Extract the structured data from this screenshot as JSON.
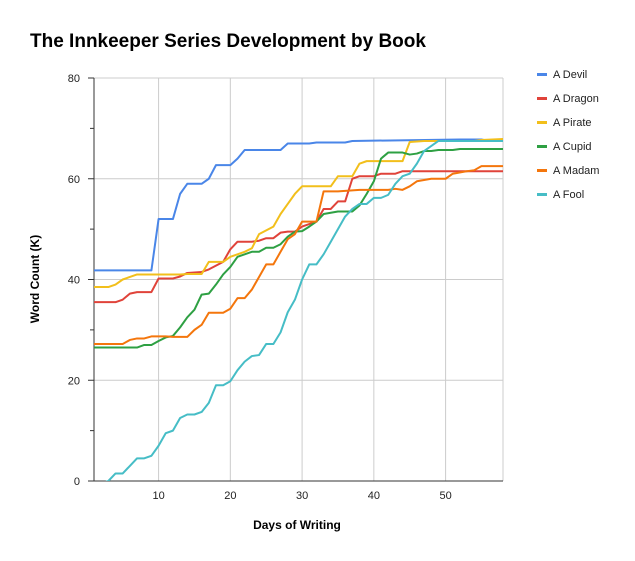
{
  "chart_data": {
    "type": "line",
    "title": "The Innkeeper Series Development by Book",
    "xlabel": "Days of Writing",
    "ylabel": "Word Count (K)",
    "xlim": [
      1,
      58
    ],
    "ylim": [
      0,
      80
    ],
    "x_ticks": [
      10,
      20,
      30,
      40,
      50
    ],
    "y_ticks": [
      0,
      20,
      40,
      60,
      80
    ],
    "legend_position": "right",
    "series": [
      {
        "name": "A Devil",
        "color": "#4a86e8",
        "points": [
          [
            1,
            41.8
          ],
          [
            9,
            41.8
          ],
          [
            10,
            52
          ],
          [
            12,
            52
          ],
          [
            13,
            57
          ],
          [
            14,
            59
          ],
          [
            16,
            59
          ],
          [
            17,
            60
          ],
          [
            18,
            62.7
          ],
          [
            20,
            62.7
          ],
          [
            21,
            64
          ],
          [
            22,
            65.7
          ],
          [
            27,
            65.7
          ],
          [
            28,
            67
          ],
          [
            31,
            67
          ],
          [
            32,
            67.2
          ],
          [
            36,
            67.2
          ],
          [
            37,
            67.5
          ],
          [
            52,
            67.8
          ],
          [
            55,
            67.8
          ],
          [
            56,
            67.5
          ]
        ]
      },
      {
        "name": "A Dragon",
        "color": "#e0433a",
        "points": [
          [
            1,
            35.5
          ],
          [
            4,
            35.5
          ],
          [
            5,
            36
          ],
          [
            6,
            37.2
          ],
          [
            7,
            37.5
          ],
          [
            9,
            37.5
          ],
          [
            10,
            40.2
          ],
          [
            12,
            40.2
          ],
          [
            13,
            40.6
          ],
          [
            14,
            41.3
          ],
          [
            16,
            41.5
          ],
          [
            17,
            42
          ],
          [
            19,
            43.5
          ],
          [
            20,
            46
          ],
          [
            21,
            47.5
          ],
          [
            23,
            47.5
          ],
          [
            24,
            47.7
          ],
          [
            25,
            48.2
          ],
          [
            26,
            48.2
          ],
          [
            27,
            49.3
          ],
          [
            28,
            49.5
          ],
          [
            29,
            49.5
          ],
          [
            30,
            50.5
          ],
          [
            32,
            51.5
          ],
          [
            33,
            54
          ],
          [
            34,
            54
          ],
          [
            35,
            55.5
          ],
          [
            36,
            55.5
          ],
          [
            37,
            60
          ],
          [
            38,
            60.5
          ],
          [
            40,
            60.5
          ],
          [
            41,
            61
          ],
          [
            43,
            61
          ],
          [
            44,
            61.5
          ],
          [
            58,
            61.5
          ]
        ]
      },
      {
        "name": "A Pirate",
        "color": "#f2bf1b",
        "points": [
          [
            1,
            38.5
          ],
          [
            3,
            38.5
          ],
          [
            4,
            39
          ],
          [
            5,
            40
          ],
          [
            7,
            41
          ],
          [
            13,
            41
          ],
          [
            14,
            41.1
          ],
          [
            16,
            41.1
          ],
          [
            17,
            43.5
          ],
          [
            19,
            43.5
          ],
          [
            20,
            44.5
          ],
          [
            21,
            45
          ],
          [
            22,
            45.5
          ],
          [
            23,
            46.2
          ],
          [
            24,
            49
          ],
          [
            26,
            50.5
          ],
          [
            27,
            53
          ],
          [
            28,
            55
          ],
          [
            29,
            57
          ],
          [
            30,
            58.5
          ],
          [
            34,
            58.5
          ],
          [
            35,
            60.5
          ],
          [
            37,
            60.5
          ],
          [
            38,
            63
          ],
          [
            39,
            63.5
          ],
          [
            44,
            63.5
          ],
          [
            45,
            67.3
          ],
          [
            47,
            67.5
          ],
          [
            49,
            67.5
          ],
          [
            54,
            67.5
          ],
          [
            55,
            67.7
          ],
          [
            58,
            67.9
          ]
        ]
      },
      {
        "name": "A Cupid",
        "color": "#2ea043",
        "points": [
          [
            1,
            26.5
          ],
          [
            7,
            26.5
          ],
          [
            8,
            27
          ],
          [
            9,
            27
          ],
          [
            10,
            27.8
          ],
          [
            11,
            28.5
          ],
          [
            12,
            28.8
          ],
          [
            13,
            30.5
          ],
          [
            14,
            32.5
          ],
          [
            15,
            34
          ],
          [
            16,
            37
          ],
          [
            17,
            37.2
          ],
          [
            18,
            39
          ],
          [
            19,
            41
          ],
          [
            20,
            42.5
          ],
          [
            21,
            44.5
          ],
          [
            22,
            45
          ],
          [
            23,
            45.5
          ],
          [
            24,
            45.5
          ],
          [
            25,
            46.3
          ],
          [
            26,
            46.3
          ],
          [
            27,
            47
          ],
          [
            28,
            48.5
          ],
          [
            29,
            49.5
          ],
          [
            30,
            49.6
          ],
          [
            31,
            50.5
          ],
          [
            32,
            51.5
          ],
          [
            33,
            53
          ],
          [
            35,
            53.5
          ],
          [
            37,
            53.5
          ],
          [
            38,
            54.7
          ],
          [
            39,
            57
          ],
          [
            40,
            59.5
          ],
          [
            41,
            64
          ],
          [
            42,
            65.2
          ],
          [
            44,
            65.2
          ],
          [
            45,
            64.8
          ],
          [
            46,
            65
          ],
          [
            47,
            65.5
          ],
          [
            48,
            65.5
          ],
          [
            49,
            65.7
          ],
          [
            51,
            65.7
          ],
          [
            52,
            65.9
          ],
          [
            58,
            65.9
          ]
        ]
      },
      {
        "name": "A Madam",
        "color": "#f4760c",
        "points": [
          [
            1,
            27.2
          ],
          [
            5,
            27.2
          ],
          [
            6,
            28
          ],
          [
            7,
            28.3
          ],
          [
            8,
            28.3
          ],
          [
            9,
            28.7
          ],
          [
            11,
            28.7
          ],
          [
            12,
            28.6
          ],
          [
            14,
            28.6
          ],
          [
            15,
            30
          ],
          [
            16,
            31
          ],
          [
            17,
            33.4
          ],
          [
            19,
            33.4
          ],
          [
            20,
            34.2
          ],
          [
            21,
            36.3
          ],
          [
            22,
            36.3
          ],
          [
            23,
            38
          ],
          [
            24,
            40.5
          ],
          [
            25,
            43
          ],
          [
            26,
            43
          ],
          [
            27,
            45.5
          ],
          [
            28,
            48
          ],
          [
            29,
            49
          ],
          [
            30,
            51.5
          ],
          [
            32,
            51.5
          ],
          [
            33,
            57.5
          ],
          [
            35,
            57.5
          ],
          [
            37,
            57.7
          ],
          [
            38,
            57.8
          ],
          [
            42,
            57.8
          ],
          [
            43,
            58
          ],
          [
            44,
            57.8
          ],
          [
            45,
            58.5
          ],
          [
            46,
            59.5
          ],
          [
            48,
            60
          ],
          [
            50,
            60
          ],
          [
            51,
            61
          ],
          [
            53,
            61.5
          ],
          [
            54,
            61.7
          ],
          [
            55,
            62.5
          ],
          [
            58,
            62.5
          ]
        ]
      },
      {
        "name": "A Fool",
        "color": "#46bdc6",
        "points": [
          [
            2,
            -0.5
          ],
          [
            3,
            0
          ],
          [
            4,
            1.5
          ],
          [
            5,
            1.5
          ],
          [
            6,
            3
          ],
          [
            7,
            4.5
          ],
          [
            8,
            4.5
          ],
          [
            9,
            5
          ],
          [
            10,
            7
          ],
          [
            11,
            9.5
          ],
          [
            12,
            10
          ],
          [
            13,
            12.5
          ],
          [
            14,
            13.2
          ],
          [
            15,
            13.2
          ],
          [
            16,
            13.7
          ],
          [
            17,
            15.5
          ],
          [
            18,
            19
          ],
          [
            19,
            19
          ],
          [
            20,
            19.8
          ],
          [
            21,
            22
          ],
          [
            22,
            23.7
          ],
          [
            23,
            24.8
          ],
          [
            24,
            25
          ],
          [
            25,
            27.2
          ],
          [
            26,
            27.2
          ],
          [
            27,
            29.5
          ],
          [
            28,
            33.5
          ],
          [
            29,
            36
          ],
          [
            30,
            40
          ],
          [
            31,
            43
          ],
          [
            32,
            43
          ],
          [
            33,
            45
          ],
          [
            34,
            47.5
          ],
          [
            35,
            50
          ],
          [
            36,
            52.5
          ],
          [
            37,
            54
          ],
          [
            38,
            55
          ],
          [
            39,
            55
          ],
          [
            40,
            56.2
          ],
          [
            41,
            56.2
          ],
          [
            42,
            56.8
          ],
          [
            43,
            59
          ],
          [
            44,
            60.5
          ],
          [
            45,
            61
          ],
          [
            46,
            63
          ],
          [
            47,
            65.5
          ],
          [
            49,
            67.5
          ],
          [
            58,
            67.5
          ]
        ]
      }
    ]
  }
}
